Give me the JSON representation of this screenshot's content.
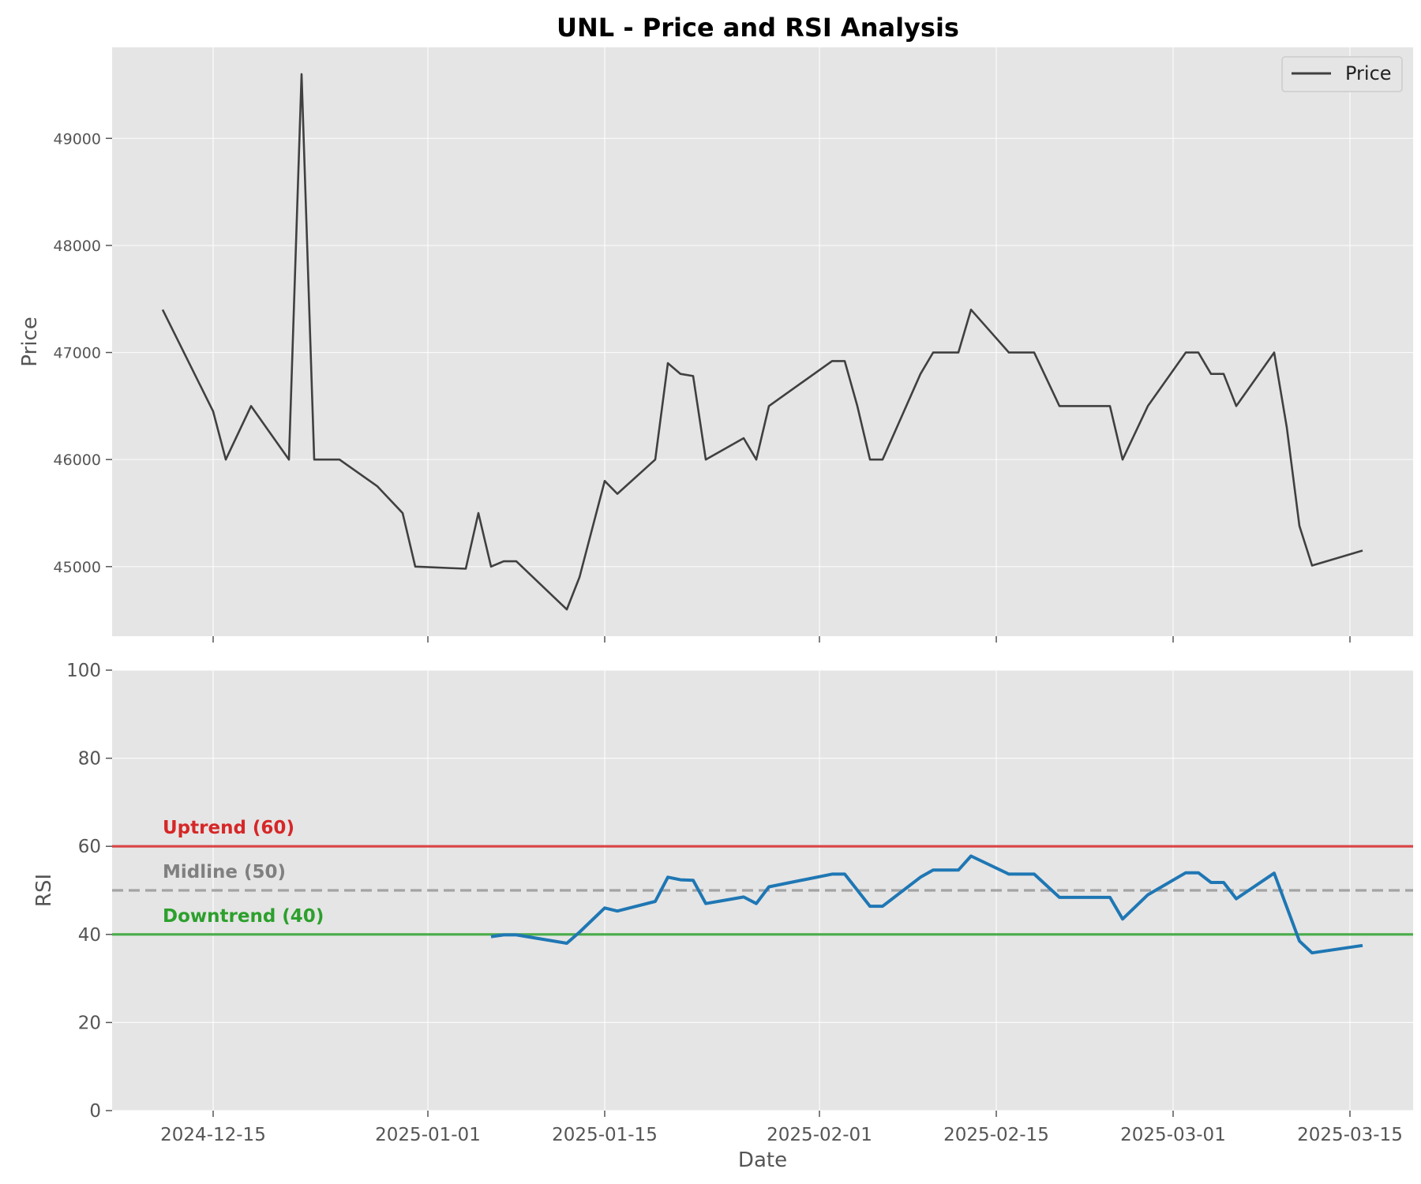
{
  "chart_data": {
    "type": "line",
    "title": "UNL - Price and RSI Analysis",
    "xlabel": "Date",
    "x_ticks": [
      "2024-12-15",
      "2025-01-01",
      "2025-01-15",
      "2025-02-01",
      "2025-02-15",
      "2025-03-01",
      "2025-03-15"
    ],
    "x_range": [
      "2024-12-07",
      "2025-03-20"
    ],
    "price_panel": {
      "ylabel": "Price",
      "ylim": [
        44350,
        49850
      ],
      "yticks": [
        45000,
        46000,
        47000,
        48000,
        49000
      ],
      "grid": true,
      "legend_position": "top-right",
      "series": [
        {
          "name": "Price",
          "color": "#404040",
          "points": [
            [
              "2024-12-11",
              47400
            ],
            [
              "2024-12-15",
              46450
            ],
            [
              "2024-12-16",
              46000
            ],
            [
              "2024-12-18",
              46500
            ],
            [
              "2024-12-21",
              46000
            ],
            [
              "2024-12-22",
              49600
            ],
            [
              "2024-12-23",
              46000
            ],
            [
              "2024-12-25",
              46000
            ],
            [
              "2024-12-28",
              45750
            ],
            [
              "2024-12-30",
              45500
            ],
            [
              "2024-12-31",
              45000
            ],
            [
              "2025-01-04",
              44980
            ],
            [
              "2025-01-05",
              45500
            ],
            [
              "2025-01-06",
              45000
            ],
            [
              "2025-01-07",
              45050
            ],
            [
              "2025-01-08",
              45050
            ],
            [
              "2025-01-12",
              44600
            ],
            [
              "2025-01-13",
              44900
            ],
            [
              "2025-01-15",
              45800
            ],
            [
              "2025-01-16",
              45680
            ],
            [
              "2025-01-19",
              46000
            ],
            [
              "2025-01-20",
              46900
            ],
            [
              "2025-01-21",
              46800
            ],
            [
              "2025-01-22",
              46780
            ],
            [
              "2025-01-23",
              46000
            ],
            [
              "2025-01-26",
              46200
            ],
            [
              "2025-01-27",
              46000
            ],
            [
              "2025-01-28",
              46500
            ],
            [
              "2025-02-02",
              46920
            ],
            [
              "2025-02-03",
              46920
            ],
            [
              "2025-02-04",
              46500
            ],
            [
              "2025-02-05",
              46000
            ],
            [
              "2025-02-06",
              46000
            ],
            [
              "2025-02-09",
              46800
            ],
            [
              "2025-02-10",
              47000
            ],
            [
              "2025-02-12",
              47000
            ],
            [
              "2025-02-13",
              47400
            ],
            [
              "2025-02-16",
              47000
            ],
            [
              "2025-02-18",
              47000
            ],
            [
              "2025-02-20",
              46500
            ],
            [
              "2025-02-24",
              46500
            ],
            [
              "2025-02-25",
              46000
            ],
            [
              "2025-02-27",
              46500
            ],
            [
              "2025-03-02",
              47000
            ],
            [
              "2025-03-03",
              47000
            ],
            [
              "2025-03-04",
              46800
            ],
            [
              "2025-03-05",
              46800
            ],
            [
              "2025-03-06",
              46500
            ],
            [
              "2025-03-09",
              47000
            ],
            [
              "2025-03-10",
              46300
            ],
            [
              "2025-03-11",
              45380
            ],
            [
              "2025-03-12",
              45010
            ],
            [
              "2025-03-16",
              45150
            ]
          ]
        }
      ]
    },
    "rsi_panel": {
      "ylabel": "RSI",
      "ylim": [
        0,
        100
      ],
      "yticks": [
        0,
        20,
        40,
        60,
        80,
        100
      ],
      "grid": true,
      "series": [
        {
          "name": "RSI",
          "color": "#1f77b4",
          "points": [
            [
              "2025-01-06",
              39.5
            ],
            [
              "2025-01-07",
              39.9
            ],
            [
              "2025-01-08",
              39.9
            ],
            [
              "2025-01-12",
              38.0
            ],
            [
              "2025-01-13",
              40.5
            ],
            [
              "2025-01-15",
              46.0
            ],
            [
              "2025-01-16",
              45.3
            ],
            [
              "2025-01-19",
              47.5
            ],
            [
              "2025-01-20",
              53.0
            ],
            [
              "2025-01-21",
              52.4
            ],
            [
              "2025-01-22",
              52.3
            ],
            [
              "2025-01-23",
              47.0
            ],
            [
              "2025-01-26",
              48.5
            ],
            [
              "2025-01-27",
              47.0
            ],
            [
              "2025-01-28",
              50.8
            ],
            [
              "2025-02-02",
              53.7
            ],
            [
              "2025-02-03",
              53.7
            ],
            [
              "2025-02-05",
              46.4
            ],
            [
              "2025-02-06",
              46.4
            ],
            [
              "2025-02-09",
              53.0
            ],
            [
              "2025-02-10",
              54.6
            ],
            [
              "2025-02-12",
              54.6
            ],
            [
              "2025-02-13",
              57.8
            ],
            [
              "2025-02-16",
              53.7
            ],
            [
              "2025-02-18",
              53.7
            ],
            [
              "2025-02-20",
              48.4
            ],
            [
              "2025-02-24",
              48.4
            ],
            [
              "2025-02-25",
              43.5
            ],
            [
              "2025-02-27",
              49.0
            ],
            [
              "2025-03-02",
              54.0
            ],
            [
              "2025-03-03",
              54.0
            ],
            [
              "2025-03-04",
              51.8
            ],
            [
              "2025-03-05",
              51.8
            ],
            [
              "2025-03-06",
              48.1
            ],
            [
              "2025-03-09",
              53.9
            ],
            [
              "2025-03-11",
              38.5
            ],
            [
              "2025-03-12",
              35.8
            ],
            [
              "2025-03-16",
              37.5
            ]
          ]
        }
      ],
      "reference_lines": [
        {
          "label": "Uptrend (60)",
          "value": 60,
          "color": "#d62728",
          "style": "solid"
        },
        {
          "label": "Midline (50)",
          "value": 50,
          "color": "#808080",
          "style": "dashed"
        },
        {
          "label": "Downtrend (40)",
          "value": 40,
          "color": "#2ca02c",
          "style": "solid"
        }
      ]
    }
  }
}
